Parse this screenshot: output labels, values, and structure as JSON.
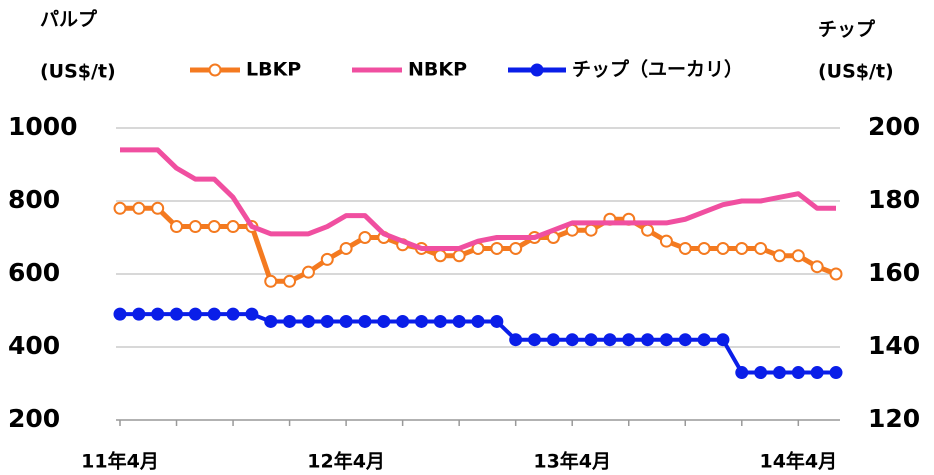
{
  "chart_data": {
    "type": "line",
    "ylabel": [
      "パルプ",
      "(US$/t)"
    ],
    "y2label": [
      "チップ",
      "(US$/t)"
    ],
    "categories": [
      "11年4月",
      null,
      null,
      null,
      null,
      null,
      null,
      null,
      null,
      null,
      null,
      null,
      "12年4月",
      null,
      null,
      null,
      null,
      null,
      null,
      null,
      null,
      null,
      null,
      null,
      "13年4月",
      null,
      null,
      null,
      null,
      null,
      null,
      null,
      null,
      null,
      null,
      null,
      "14年4月",
      null,
      null
    ],
    "series": [
      {
        "name": "LBKP",
        "color": "#f47a20",
        "marker": true,
        "values": [
          780,
          780,
          780,
          730,
          730,
          730,
          730,
          730,
          580,
          580,
          605,
          640,
          670,
          700,
          700,
          680,
          670,
          650,
          650,
          670,
          670,
          670,
          700,
          700,
          720,
          720,
          750,
          750,
          720,
          690,
          670,
          670,
          670,
          670,
          670,
          650,
          650,
          620,
          600
        ]
      },
      {
        "name": "NBKP",
        "color": "#f04fa0",
        "marker": false,
        "values": [
          940,
          940,
          940,
          890,
          860,
          860,
          810,
          730,
          710,
          710,
          710,
          730,
          760,
          760,
          710,
          690,
          670,
          670,
          670,
          690,
          700,
          700,
          700,
          720,
          740,
          740,
          740,
          740,
          740,
          740,
          750,
          770,
          790,
          800,
          800,
          810,
          820,
          780,
          780
        ]
      },
      {
        "name": "チップ（ユーカリ）",
        "color": "#0a1ee8",
        "marker": true,
        "axis": "y2",
        "values": [
          149,
          149,
          149,
          149,
          149,
          149,
          149,
          149,
          147,
          147,
          147,
          147,
          147,
          147,
          147,
          147,
          147,
          147,
          147,
          147,
          147,
          142,
          142,
          142,
          142,
          142,
          142,
          142,
          142,
          142,
          142,
          142,
          142,
          133,
          133,
          133,
          133,
          133,
          133
        ]
      }
    ],
    "ylim": [
      200,
      1000
    ],
    "yticks": [
      200,
      400,
      600,
      800,
      1000
    ],
    "y2lim": [
      120,
      200
    ],
    "y2ticks": [
      120,
      140,
      160,
      180,
      200
    ],
    "grid": true
  }
}
